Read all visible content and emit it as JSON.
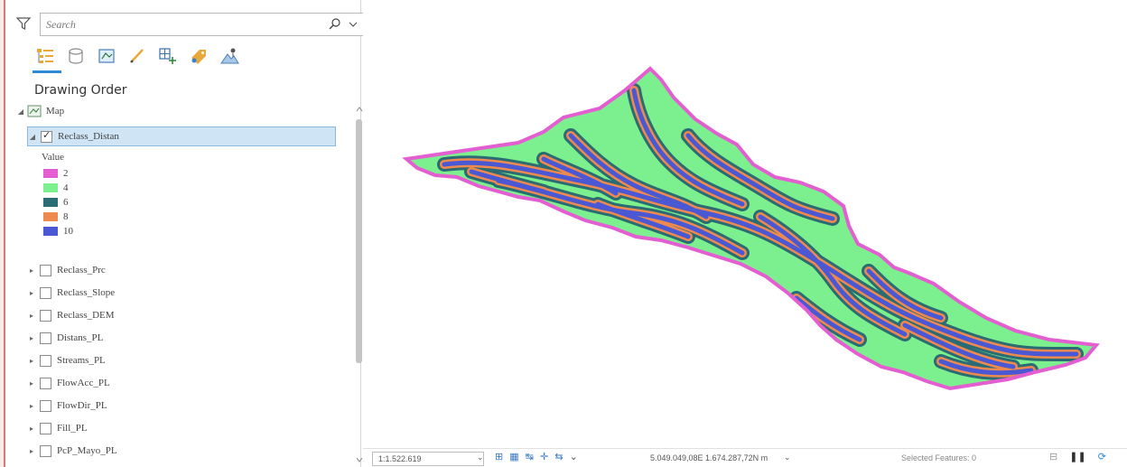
{
  "search": {
    "placeholder": "Search"
  },
  "contents": {
    "section_title": "Drawing Order",
    "map_label": "Map",
    "active_layer": "Reclass_Distan",
    "legend_title": "Value",
    "legend": [
      {
        "label": "2",
        "color": "#e35fd1"
      },
      {
        "label": "4",
        "color": "#7cf08e"
      },
      {
        "label": "6",
        "color": "#2b6b73"
      },
      {
        "label": "8",
        "color": "#ee8a50"
      },
      {
        "label": "10",
        "color": "#4a58d4"
      }
    ],
    "layers": [
      "Reclass_Prc",
      "Reclass_Slope",
      "Reclass_DEM",
      "Distans_PL",
      "Streams_PL",
      "FlowAcc_PL",
      "FlowDir_PL",
      "Fill_PL",
      "PcP_Mayo_PL"
    ]
  },
  "toolbar_icons": [
    "list-by-drawing-order-icon",
    "list-by-source-icon",
    "list-by-selection-icon",
    "list-by-editing-icon",
    "list-by-snapping-icon",
    "list-by-labeling-icon",
    "list-by-perspective-icon"
  ],
  "status": {
    "scale": "1:1.522.619",
    "coordinates": "5.049.049,08E 1.674.287,72N m",
    "coord_unit_dd": "⌄",
    "selected_features": "Selected Features: 0"
  },
  "colors": {
    "accent": "#2a8ad6",
    "selection_bg": "#cfe4f5"
  }
}
